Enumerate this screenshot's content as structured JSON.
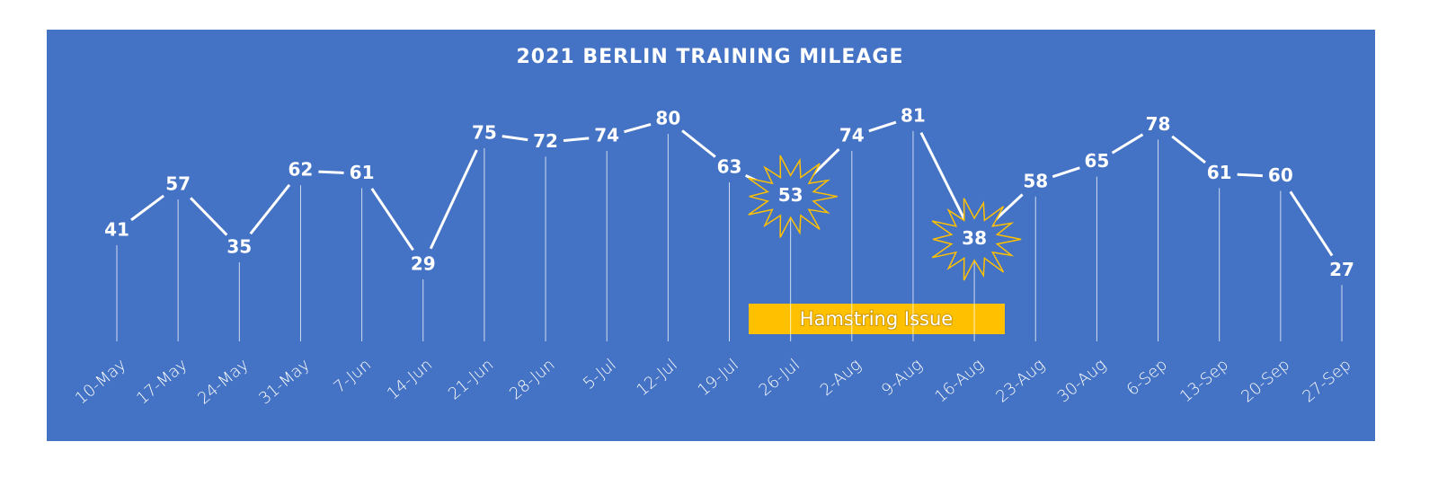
{
  "chart_data": {
    "type": "line",
    "title": "2021 BERLIN TRAINING MILEAGE",
    "categories": [
      "10-May",
      "17-May",
      "24-May",
      "31-May",
      "7-Jun",
      "14-Jun",
      "21-Jun",
      "28-Jun",
      "5-Jul",
      "12-Jul",
      "19-Jul",
      "26-Jul",
      "2-Aug",
      "9-Aug",
      "16-Aug",
      "23-Aug",
      "30-Aug",
      "6-Sep",
      "13-Sep",
      "20-Sep",
      "27-Sep"
    ],
    "values": [
      41,
      57,
      35,
      62,
      61,
      29,
      75,
      72,
      74,
      80,
      63,
      53,
      74,
      81,
      38,
      58,
      65,
      78,
      61,
      60,
      27
    ],
    "color": "#ffffff",
    "background": "#4472c4",
    "highlights": [
      "26-Jul",
      "16-Aug"
    ],
    "highlight_color": "#ffc000",
    "annotation": {
      "text": "Hamstring Issue",
      "color": "#ffc000"
    }
  }
}
